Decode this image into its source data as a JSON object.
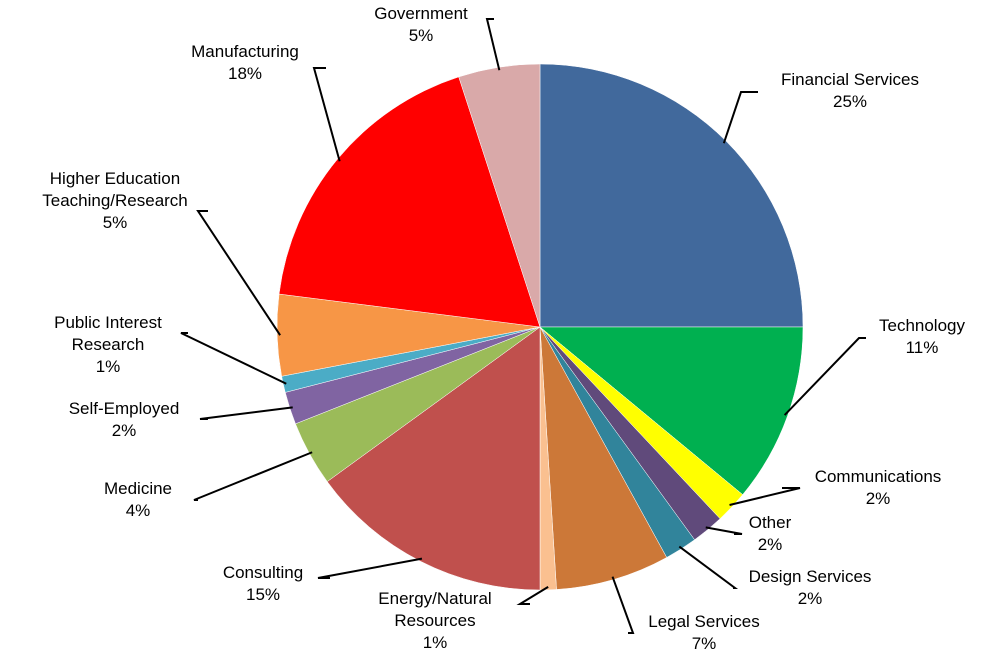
{
  "chart_data": {
    "type": "pie",
    "title": "",
    "start_angle_deg": 0,
    "direction": "clockwise",
    "slices": [
      {
        "label": "Financial Services",
        "label_lines": [
          "Financial Services",
          "25%"
        ],
        "value": 25.0,
        "pct_label": "25%",
        "color": "#41699C"
      },
      {
        "label": "Technology",
        "label_lines": [
          "Technology",
          "11%"
        ],
        "value": 11.0,
        "pct_label": "11%",
        "color": "#00B050"
      },
      {
        "label": "Communications",
        "label_lines": [
          "Communications",
          "2%"
        ],
        "value": 2.0,
        "pct_label": "2%",
        "color": "#FFFF00"
      },
      {
        "label": "Other",
        "label_lines": [
          "Other",
          "2%"
        ],
        "value": 2.0,
        "pct_label": "2%",
        "color": "#604A7B"
      },
      {
        "label": "Design Services",
        "label_lines": [
          "Design Services",
          "2%"
        ],
        "value": 2.0,
        "pct_label": "2%",
        "color": "#31849B"
      },
      {
        "label": "Legal Services",
        "label_lines": [
          "Legal Services",
          "7%"
        ],
        "value": 7.0,
        "pct_label": "7%",
        "color": "#CC7838"
      },
      {
        "label": "Energy/Natural Resources",
        "label_lines": [
          "Energy/Natural",
          "Resources",
          "1%"
        ],
        "value": 1.0,
        "pct_label": "1%",
        "color": "#FAC090"
      },
      {
        "label": "Consulting",
        "label_lines": [
          "Consulting",
          "15%"
        ],
        "value": 15.0,
        "pct_label": "15%",
        "color": "#C0504D"
      },
      {
        "label": "Medicine",
        "label_lines": [
          "Medicine",
          "4%"
        ],
        "value": 4.0,
        "pct_label": "4%",
        "color": "#9BBB59"
      },
      {
        "label": "Self-Employed",
        "label_lines": [
          "Self-Employed",
          "2%"
        ],
        "value": 2.0,
        "pct_label": "2%",
        "color": "#8064A2"
      },
      {
        "label": "Public Interest Research",
        "label_lines": [
          "Public Interest",
          "Research",
          "1%"
        ],
        "value": 1.0,
        "pct_label": "1%",
        "color": "#4BACC6"
      },
      {
        "label": "Higher Education Teaching/Research",
        "label_lines": [
          "Higher Education",
          "Teaching/Research",
          "5%"
        ],
        "value": 5.0,
        "pct_label": "5%",
        "color": "#F79646"
      },
      {
        "label": "Manufacturing",
        "label_lines": [
          "Manufacturing",
          "18%"
        ],
        "value": 18.0,
        "pct_label": "18%",
        "color": "#FF0000"
      },
      {
        "label": "Government",
        "label_lines": [
          "Government",
          "5%"
        ],
        "value": 5.0,
        "pct_label": "5%",
        "color": "#D9A9A9"
      }
    ]
  }
}
